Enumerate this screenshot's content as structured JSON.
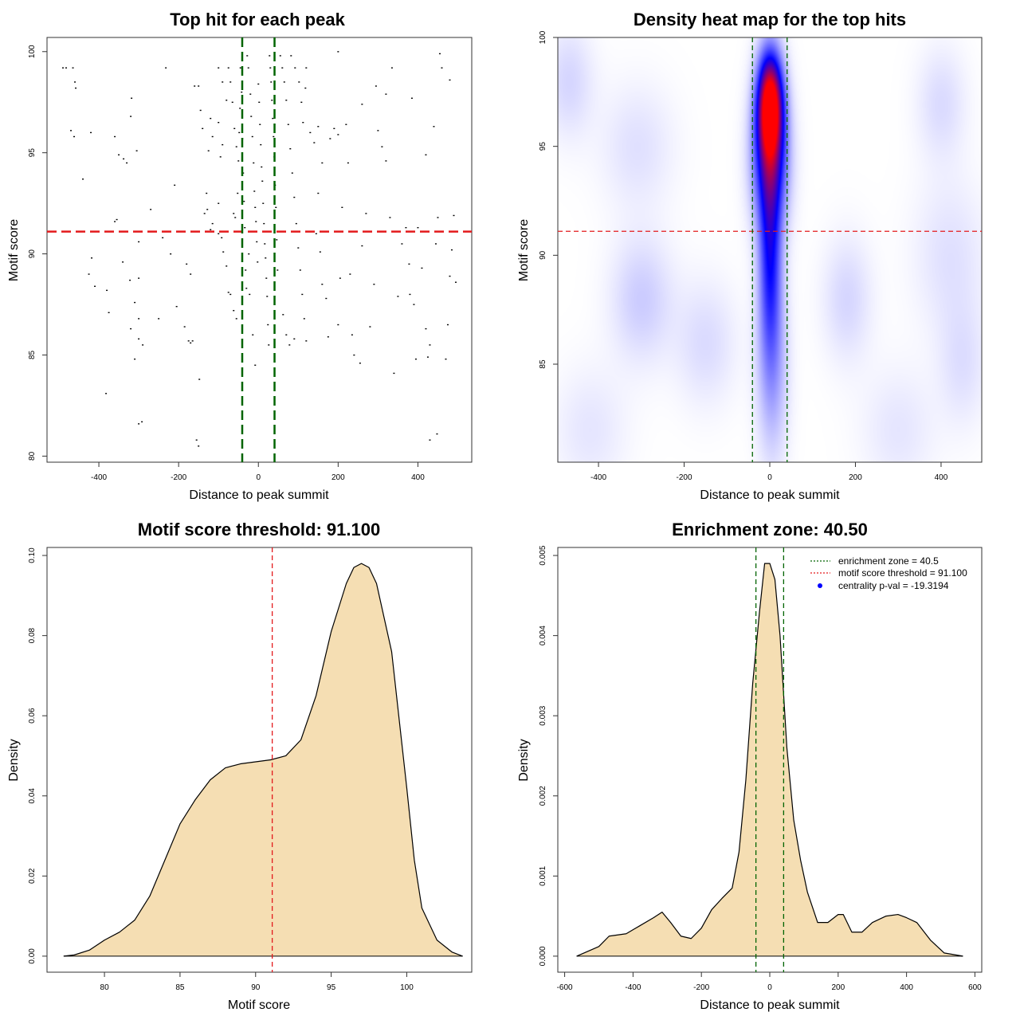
{
  "colors": {
    "threshold": "#e31a1c",
    "zone": "#006400",
    "fill": "#f5deb3",
    "heat_low": "#ffffff",
    "heat_mid": "#0000ff",
    "heat_high": "#ff0000",
    "legend_dot": "#0000ff"
  },
  "chart_data": [
    {
      "type": "scatter",
      "title": "Top hit for each peak",
      "xlabel": "Distance to peak summit",
      "ylabel": "Motif score",
      "xlim": [
        -530,
        535
      ],
      "ylim": [
        79.7,
        100.7
      ],
      "xticks": [
        -400,
        -200,
        0,
        200,
        400
      ],
      "yticks": [
        80,
        85,
        90,
        95,
        100
      ],
      "hlines": [
        91.1
      ],
      "vlines": [
        -40.5,
        40.5
      ],
      "points": [
        [
          -490,
          99.2
        ],
        [
          -482,
          99.2
        ],
        [
          -465,
          99.2
        ],
        [
          -460,
          98.5
        ],
        [
          -458,
          98.2
        ],
        [
          -470,
          96.1
        ],
        [
          -462,
          95.8
        ],
        [
          -420,
          96.0
        ],
        [
          -440,
          93.7
        ],
        [
          -418,
          89.8
        ],
        [
          -425,
          89.0
        ],
        [
          -410,
          88.4
        ],
        [
          -380,
          88.2
        ],
        [
          -375,
          87.1
        ],
        [
          -382,
          83.1
        ],
        [
          -360,
          95.8
        ],
        [
          -350,
          94.9
        ],
        [
          -338,
          94.7
        ],
        [
          -330,
          94.5
        ],
        [
          -318,
          97.7
        ],
        [
          -320,
          96.8
        ],
        [
          -360,
          91.6
        ],
        [
          -355,
          91.7
        ],
        [
          -340,
          89.6
        ],
        [
          -322,
          88.7
        ],
        [
          -300,
          88.8
        ],
        [
          -310,
          87.6
        ],
        [
          -300,
          86.8
        ],
        [
          -320,
          86.3
        ],
        [
          -300,
          85.8
        ],
        [
          -290,
          85.5
        ],
        [
          -310,
          84.8
        ],
        [
          -300,
          81.6
        ],
        [
          -292,
          81.7
        ],
        [
          -305,
          95.1
        ],
        [
          -300,
          90.6
        ],
        [
          -270,
          92.2
        ],
        [
          -250,
          86.8
        ],
        [
          -240,
          90.8
        ],
        [
          -232,
          99.2
        ],
        [
          -220,
          90.0
        ],
        [
          -210,
          93.4
        ],
        [
          -205,
          87.4
        ],
        [
          -185,
          86.4
        ],
        [
          -175,
          85.7
        ],
        [
          -170,
          85.6
        ],
        [
          -165,
          85.7
        ],
        [
          -160,
          98.3
        ],
        [
          -150,
          98.3
        ],
        [
          -145,
          97.1
        ],
        [
          -140,
          96.2
        ],
        [
          -148,
          83.8
        ],
        [
          -155,
          80.8
        ],
        [
          -150,
          80.5
        ],
        [
          -180,
          89.5
        ],
        [
          -170,
          89.0
        ],
        [
          -135,
          92.0
        ],
        [
          -130,
          93.0
        ],
        [
          -128,
          92.2
        ],
        [
          -125,
          95.1
        ],
        [
          -120,
          96.7
        ],
        [
          -115,
          95.8
        ],
        [
          -115,
          91.5
        ],
        [
          -120,
          91.2
        ],
        [
          -100,
          96.5
        ],
        [
          -95,
          94.8
        ],
        [
          -90,
          95.4
        ],
        [
          -100,
          92.5
        ],
        [
          -100,
          91.0
        ],
        [
          -92,
          90.8
        ],
        [
          -88,
          90.1
        ],
        [
          -80,
          89.4
        ],
        [
          -75,
          88.1
        ],
        [
          -70,
          88.0
        ],
        [
          -62,
          87.2
        ],
        [
          -55,
          86.8
        ],
        [
          -100,
          99.2
        ],
        [
          -90,
          98.5
        ],
        [
          -80,
          97.6
        ],
        [
          -75,
          99.2
        ],
        [
          -70,
          98.5
        ],
        [
          -65,
          97.5
        ],
        [
          -60,
          96.2
        ],
        [
          -55,
          95.3
        ],
        [
          -50,
          94.6
        ],
        [
          -45,
          99.2
        ],
        [
          -42,
          98.0
        ],
        [
          -40,
          95.7
        ],
        [
          -38,
          94.0
        ],
        [
          -36,
          92.6
        ],
        [
          -34,
          91.3
        ],
        [
          -32,
          89.2
        ],
        [
          -30,
          88.3
        ],
        [
          -28,
          99.8
        ],
        [
          -25,
          99.2
        ],
        [
          -20,
          97.9
        ],
        [
          -18,
          96.8
        ],
        [
          -15,
          95.8
        ],
        [
          -12,
          94.5
        ],
        [
          -10,
          93.1
        ],
        [
          -8,
          92.3
        ],
        [
          -6,
          91.6
        ],
        [
          -4,
          90.6
        ],
        [
          -2,
          89.6
        ],
        [
          0,
          98.4
        ],
        [
          2,
          97.5
        ],
        [
          4,
          96.4
        ],
        [
          6,
          95.4
        ],
        [
          8,
          94.3
        ],
        [
          10,
          93.6
        ],
        [
          12,
          92.5
        ],
        [
          14,
          91.5
        ],
        [
          16,
          90.5
        ],
        [
          18,
          89.8
        ],
        [
          20,
          88.8
        ],
        [
          22,
          87.9
        ],
        [
          24,
          86.5
        ],
        [
          26,
          85.5
        ],
        [
          28,
          99.8
        ],
        [
          30,
          99.2
        ],
        [
          32,
          98.5
        ],
        [
          34,
          97.6
        ],
        [
          36,
          96.7
        ],
        [
          38,
          95.8
        ],
        [
          40,
          94.8
        ],
        [
          42,
          93.4
        ],
        [
          44,
          92.3
        ],
        [
          46,
          90.7
        ],
        [
          48,
          89.2
        ],
        [
          -62,
          92.0
        ],
        [
          -58,
          91.8
        ],
        [
          -52,
          93.0
        ],
        [
          -48,
          96.0
        ],
        [
          -46,
          97.2
        ],
        [
          -24,
          90.0
        ],
        [
          -22,
          88.0
        ],
        [
          -14,
          86.0
        ],
        [
          -8,
          84.5
        ],
        [
          55,
          99.8
        ],
        [
          60,
          99.2
        ],
        [
          65,
          98.5
        ],
        [
          70,
          97.6
        ],
        [
          75,
          96.4
        ],
        [
          80,
          95.2
        ],
        [
          85,
          94.0
        ],
        [
          90,
          92.8
        ],
        [
          95,
          91.5
        ],
        [
          100,
          90.3
        ],
        [
          105,
          89.2
        ],
        [
          110,
          88.0
        ],
        [
          115,
          86.8
        ],
        [
          120,
          85.7
        ],
        [
          82,
          99.8
        ],
        [
          92,
          99.2
        ],
        [
          102,
          98.5
        ],
        [
          108,
          97.5
        ],
        [
          112,
          96.5
        ],
        [
          62,
          87.0
        ],
        [
          70,
          86.0
        ],
        [
          78,
          85.5
        ],
        [
          90,
          85.8
        ],
        [
          120,
          99.2
        ],
        [
          118,
          98.2
        ],
        [
          130,
          96.0
        ],
        [
          140,
          95.5
        ],
        [
          150,
          96.3
        ],
        [
          160,
          94.5
        ],
        [
          150,
          93.0
        ],
        [
          145,
          91.0
        ],
        [
          155,
          90.1
        ],
        [
          160,
          88.5
        ],
        [
          170,
          87.8
        ],
        [
          175,
          85.9
        ],
        [
          180,
          95.7
        ],
        [
          190,
          96.2
        ],
        [
          200,
          95.9
        ],
        [
          200,
          86.5
        ],
        [
          205,
          88.8
        ],
        [
          210,
          92.3
        ],
        [
          220,
          96.4
        ],
        [
          225,
          94.5
        ],
        [
          230,
          89.0
        ],
        [
          235,
          86.0
        ],
        [
          240,
          85.0
        ],
        [
          255,
          84.6
        ],
        [
          260,
          90.4
        ],
        [
          270,
          92.0
        ],
        [
          280,
          86.4
        ],
        [
          290,
          88.5
        ],
        [
          300,
          96.1
        ],
        [
          310,
          95.3
        ],
        [
          320,
          94.6
        ],
        [
          330,
          91.8
        ],
        [
          340,
          84.1
        ],
        [
          350,
          87.9
        ],
        [
          360,
          90.5
        ],
        [
          370,
          91.3
        ],
        [
          378,
          89.5
        ],
        [
          380,
          88.0
        ],
        [
          390,
          87.5
        ],
        [
          395,
          84.8
        ],
        [
          400,
          91.3
        ],
        [
          410,
          89.3
        ],
        [
          420,
          86.3
        ],
        [
          425,
          84.9
        ],
        [
          430,
          85.5
        ],
        [
          440,
          96.3
        ],
        [
          445,
          90.5
        ],
        [
          450,
          91.8
        ],
        [
          455,
          99.9
        ],
        [
          460,
          99.2
        ],
        [
          470,
          84.8
        ],
        [
          475,
          86.5
        ],
        [
          480,
          88.9
        ],
        [
          485,
          90.2
        ],
        [
          490,
          91.9
        ],
        [
          495,
          88.6
        ],
        [
          448,
          81.1
        ],
        [
          430,
          80.8
        ],
        [
          200,
          100
        ],
        [
          260,
          97.4
        ],
        [
          295,
          98.3
        ],
        [
          320,
          97.9
        ],
        [
          335,
          99.2
        ],
        [
          385,
          97.7
        ],
        [
          420,
          94.9
        ],
        [
          480,
          98.6
        ]
      ]
    },
    {
      "type": "heatmap",
      "title": "Density heat map for the top hits",
      "xlabel": "Distance to peak summit",
      "ylabel": "Motif score",
      "xlim": [
        -495,
        495
      ],
      "ylim": [
        80.5,
        100
      ],
      "xticks": [
        -400,
        -200,
        0,
        200,
        400
      ],
      "yticks": [
        85,
        90,
        95,
        100
      ],
      "hlines": [
        91.1
      ],
      "vlines": [
        -40.5,
        40.5
      ],
      "color_scale": [
        "#ffffff",
        "#0000ff",
        "#ff0000"
      ],
      "density_blobs": [
        {
          "x": 0,
          "y": 97.0,
          "sx": 20,
          "sy": 1.6,
          "w": 1.0
        },
        {
          "x": 0,
          "y": 94.5,
          "sx": 28,
          "sy": 2.2,
          "w": 0.55
        },
        {
          "x": 0,
          "y": 90.0,
          "sx": 18,
          "sy": 3.0,
          "w": 0.42
        },
        {
          "x": 5,
          "y": 85.0,
          "sx": 25,
          "sy": 3.0,
          "w": 0.18
        },
        {
          "x": -470,
          "y": 98.0,
          "sx": 40,
          "sy": 1.8,
          "w": 0.08
        },
        {
          "x": -300,
          "y": 88.0,
          "sx": 50,
          "sy": 2.0,
          "w": 0.1
        },
        {
          "x": -310,
          "y": 95.0,
          "sx": 60,
          "sy": 2.0,
          "w": 0.06
        },
        {
          "x": -150,
          "y": 86.0,
          "sx": 50,
          "sy": 2.0,
          "w": 0.07
        },
        {
          "x": 180,
          "y": 88.0,
          "sx": 40,
          "sy": 2.0,
          "w": 0.08
        },
        {
          "x": 400,
          "y": 97.0,
          "sx": 40,
          "sy": 1.8,
          "w": 0.07
        },
        {
          "x": 420,
          "y": 90.0,
          "sx": 60,
          "sy": 2.5,
          "w": 0.06
        },
        {
          "x": 450,
          "y": 85.0,
          "sx": 40,
          "sy": 2.0,
          "w": 0.06
        },
        {
          "x": -420,
          "y": 82.0,
          "sx": 60,
          "sy": 2.0,
          "w": 0.05
        },
        {
          "x": 300,
          "y": 82.0,
          "sx": 60,
          "sy": 2.0,
          "w": 0.05
        }
      ]
    },
    {
      "type": "area",
      "title": "Motif score threshold: 91.100",
      "xlabel": "Motif score",
      "ylabel": "Density",
      "xlim": [
        76.2,
        104.3
      ],
      "ylim": [
        -0.004,
        0.102
      ],
      "xticks": [
        80,
        85,
        90,
        95,
        100
      ],
      "yticks": [
        0.0,
        0.02,
        0.04,
        0.06,
        0.08,
        0.1
      ],
      "ytick_labels": [
        "0.00",
        "0.02",
        "0.04",
        "0.06",
        "0.08",
        "0.10"
      ],
      "vlines": [
        91.1
      ],
      "x": [
        77.3,
        78,
        79,
        80,
        81,
        82,
        83,
        84,
        85,
        86,
        87,
        88,
        89,
        90,
        91,
        92,
        93,
        94,
        95,
        96,
        96.5,
        97,
        97.5,
        98,
        99,
        100,
        100.5,
        101,
        102,
        103,
        103.7
      ],
      "y": [
        0.0,
        0.0003,
        0.0015,
        0.004,
        0.006,
        0.009,
        0.015,
        0.024,
        0.033,
        0.039,
        0.044,
        0.047,
        0.048,
        0.0485,
        0.049,
        0.05,
        0.054,
        0.065,
        0.081,
        0.093,
        0.097,
        0.098,
        0.097,
        0.093,
        0.076,
        0.042,
        0.024,
        0.012,
        0.004,
        0.001,
        0.0
      ]
    },
    {
      "type": "area",
      "title": "Enrichment zone: 40.50",
      "xlabel": "Distance to peak summit",
      "ylabel": "Density",
      "xlim": [
        -620,
        620
      ],
      "ylim": [
        -0.0002,
        0.0051
      ],
      "xticks": [
        -600,
        -400,
        -200,
        0,
        200,
        400,
        600
      ],
      "yticks": [
        0.0,
        0.001,
        0.002,
        0.003,
        0.004,
        0.005
      ],
      "ytick_labels": [
        "0.000",
        "0.001",
        "0.002",
        "0.003",
        "0.004",
        "0.005"
      ],
      "vlines": [
        -40.5,
        40.5
      ],
      "x": [
        -565,
        -500,
        -470,
        -420,
        -380,
        -340,
        -315,
        -290,
        -260,
        -230,
        -200,
        -170,
        -140,
        -110,
        -90,
        -70,
        -50,
        -30,
        -15,
        0,
        15,
        30,
        50,
        70,
        90,
        110,
        140,
        170,
        200,
        215,
        240,
        270,
        300,
        340,
        375,
        400,
        430,
        470,
        510,
        565
      ],
      "y": [
        0.0,
        0.00012,
        0.00025,
        0.00028,
        0.00038,
        0.00048,
        0.00055,
        0.00042,
        0.00025,
        0.00022,
        0.00035,
        0.00058,
        0.00072,
        0.00085,
        0.0013,
        0.0022,
        0.0034,
        0.0043,
        0.0049,
        0.0049,
        0.0047,
        0.004,
        0.0026,
        0.0017,
        0.0012,
        0.0008,
        0.00042,
        0.00042,
        0.00052,
        0.00052,
        0.0003,
        0.0003,
        0.00042,
        0.0005,
        0.00052,
        0.00048,
        0.00042,
        0.0002,
        4e-05,
        0.0
      ],
      "legend": [
        {
          "label": "enrichment zone = 40.5",
          "style": "dotted",
          "color": "#006400"
        },
        {
          "label": "motif score threshold = 91.100",
          "style": "dotted",
          "color": "#e31a1c"
        },
        {
          "label": "centrality p-val = -19.3194",
          "style": "dot",
          "color": "#0000ff"
        }
      ],
      "legend_position": "top-right"
    }
  ]
}
